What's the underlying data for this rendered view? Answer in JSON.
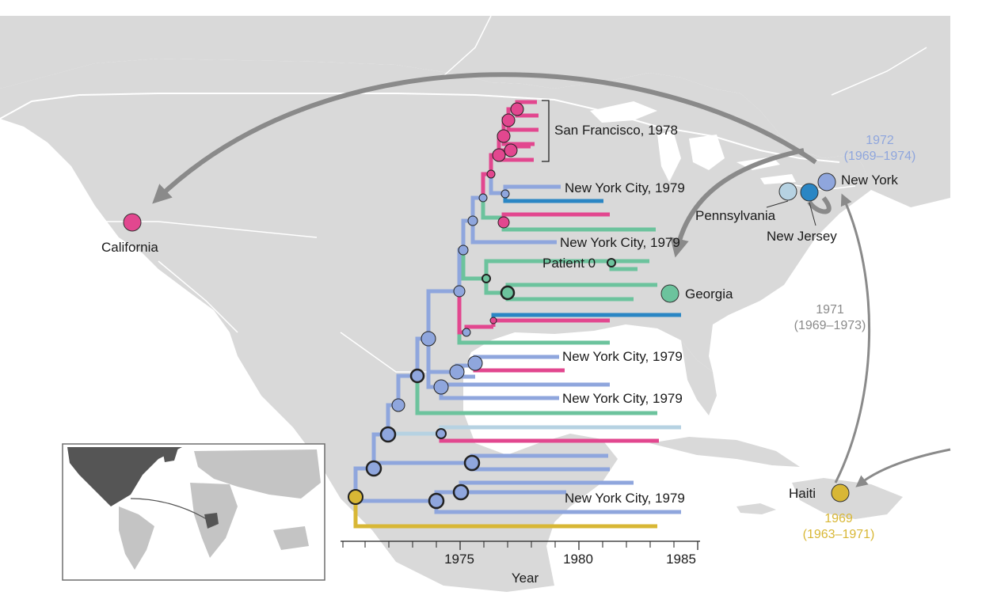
{
  "colors": {
    "new_york": "#8fa6dd",
    "new_jersey": "#2a86c4",
    "pennsylvania": "#b6d2e2",
    "california": "#e2478f",
    "georgia": "#6cc39d",
    "haiti": "#d8b735",
    "map_land": "#d9d9d9",
    "map_border": "#ffffff",
    "arrow": "#8a8a8a"
  },
  "map_labels": {
    "california": "California",
    "new_york": "New York",
    "pennsylvania": "Pennsylvania",
    "new_jersey": "New Jersey",
    "georgia": "Georgia",
    "haiti": "Haiti"
  },
  "dates": {
    "new_york_year": "1972",
    "new_york_range": "(1969–1974)",
    "transfer_year": "1971",
    "transfer_range": "(1969–1973)",
    "haiti_year": "1969",
    "haiti_range": "(1963–1971)"
  },
  "tree_labels": {
    "sf": "San Francisco, 1978",
    "nyc1": "New York City, 1979",
    "nyc2": "New York City, 1979",
    "patient0": "Patient 0",
    "nyc3": "New York City, 1979",
    "nyc4": "New York City, 1979",
    "nyc5": "New York City, 1979"
  },
  "axis": {
    "label": "Year",
    "ticks": [
      "1975",
      "1980",
      "1985"
    ]
  },
  "icons": {
    "map": "north-america-map",
    "inset": "world-map-inset"
  }
}
